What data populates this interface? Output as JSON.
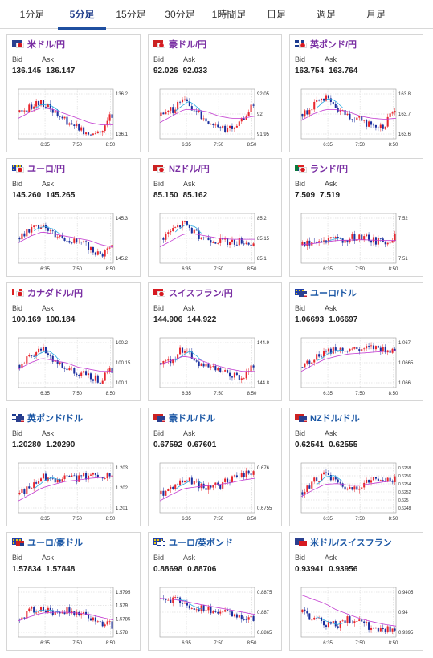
{
  "tabs": [
    {
      "label": "1分足",
      "active": false
    },
    {
      "label": "5分足",
      "active": true
    },
    {
      "label": "15分足",
      "active": false
    },
    {
      "label": "30分足",
      "active": false
    },
    {
      "label": "1時間足",
      "active": false
    },
    {
      "label": "日足",
      "active": false
    },
    {
      "label": "週足",
      "active": false
    },
    {
      "label": "月足",
      "active": false
    }
  ],
  "bid_label": "Bid",
  "ask_label": "Ask",
  "colors": {
    "up": "#e8262d",
    "down": "#1b2f9e",
    "ma1": "#2aa9e0",
    "ma2": "#c23ad0",
    "pair_purple": "#7a2fa3",
    "pair_blue": "#1b57a5"
  },
  "cards": [
    {
      "pair": "米ドル/円",
      "pair_color": "purple",
      "flag": "us-jp",
      "bid": "136.145",
      "ask": "136.147",
      "chart_data": {
        "type": "candlestick",
        "x_ticks": [
          "6:35",
          "7:50",
          "8:50"
        ],
        "y_ticks": [
          "136.2",
          "136.1"
        ],
        "y_range": [
          136.03,
          136.25
        ],
        "shape": [
          0.55,
          0.68,
          0.75,
          0.55,
          0.35,
          0.2,
          0.05,
          0.1,
          0.5
        ],
        "ma2": [
          0.4,
          0.55,
          0.65,
          0.6,
          0.5,
          0.4,
          0.3,
          0.25,
          0.25
        ]
      }
    },
    {
      "pair": "豪ドル/円",
      "pair_color": "purple",
      "flag": "au-jp",
      "bid": "92.026",
      "ask": "92.033",
      "chart_data": {
        "type": "candlestick",
        "x_ticks": [
          "6:35",
          "7:50",
          "8:50"
        ],
        "y_ticks": [
          "92.05",
          "92",
          "91.95"
        ],
        "y_range": [
          91.93,
          92.07
        ],
        "shape": [
          0.45,
          0.6,
          0.85,
          0.55,
          0.35,
          0.2,
          0.15,
          0.35,
          0.75
        ],
        "ma2": [
          0.3,
          0.45,
          0.6,
          0.6,
          0.55,
          0.45,
          0.4,
          0.4,
          0.45
        ]
      }
    },
    {
      "pair": "英ポンド/円",
      "pair_color": "purple",
      "flag": "gb-jp",
      "bid": "163.754",
      "ask": "163.764",
      "chart_data": {
        "type": "candlestick",
        "x_ticks": [
          "6:35",
          "7:50",
          "8:50"
        ],
        "y_ticks": [
          "163.8",
          "163.7",
          "163.6"
        ],
        "y_range": [
          163.55,
          163.85
        ],
        "shape": [
          0.5,
          0.7,
          0.85,
          0.6,
          0.45,
          0.35,
          0.25,
          0.2,
          0.6
        ],
        "ma2": [
          0.35,
          0.5,
          0.6,
          0.6,
          0.55,
          0.45,
          0.4,
          0.38,
          0.4
        ]
      }
    },
    {
      "pair": "ユーロ/円",
      "pair_color": "purple",
      "flag": "eu-jp",
      "bid": "145.260",
      "ask": "145.265",
      "chart_data": {
        "type": "candlestick",
        "x_ticks": [
          "6:35",
          "7:50",
          "8:50"
        ],
        "y_ticks": [
          "145.3",
          "145.2"
        ],
        "y_range": [
          145.12,
          145.36
        ],
        "shape": [
          0.5,
          0.7,
          0.85,
          0.6,
          0.5,
          0.4,
          0.3,
          0.1,
          0.35
        ],
        "ma2": [
          0.4,
          0.55,
          0.65,
          0.6,
          0.55,
          0.5,
          0.45,
          0.35,
          0.3
        ]
      }
    },
    {
      "pair": "NZドル/円",
      "pair_color": "purple",
      "flag": "nz-jp",
      "bid": "85.150",
      "ask": "85.162",
      "chart_data": {
        "type": "candlestick",
        "x_ticks": [
          "6:35",
          "7:50",
          "8:50"
        ],
        "y_ticks": [
          "85.2",
          "85.15",
          "85.1"
        ],
        "y_range": [
          85.06,
          85.22
        ],
        "shape": [
          0.5,
          0.7,
          0.85,
          0.6,
          0.5,
          0.45,
          0.4,
          0.45,
          0.35
        ],
        "ma2": [
          0.3,
          0.45,
          0.6,
          0.6,
          0.55,
          0.5,
          0.48,
          0.48,
          0.48
        ]
      }
    },
    {
      "pair": "ランド/円",
      "pair_color": "purple",
      "flag": "za-jp",
      "bid": "7.509",
      "ask": "7.519",
      "chart_data": {
        "type": "candlestick",
        "x_ticks": [
          "6:35",
          "7:50",
          "8:50"
        ],
        "y_ticks": [
          "7.52",
          "7.51"
        ],
        "y_range": [
          7.49,
          7.53
        ],
        "shape": [
          0.35,
          0.4,
          0.45,
          0.45,
          0.5,
          0.55,
          0.45,
          0.4,
          0.55
        ],
        "ma2": [
          0.35,
          0.38,
          0.42,
          0.45,
          0.46,
          0.47,
          0.46,
          0.45,
          0.45
        ]
      }
    },
    {
      "pair": "カナダドル/円",
      "pair_color": "purple",
      "flag": "ca-jp",
      "bid": "100.169",
      "ask": "100.184",
      "chart_data": {
        "type": "candlestick",
        "x_ticks": [
          "6:35",
          "7:50",
          "8:50"
        ],
        "y_ticks": [
          "100.2",
          "100.15",
          "100.1"
        ],
        "y_range": [
          100.05,
          100.25
        ],
        "shape": [
          0.45,
          0.65,
          0.85,
          0.55,
          0.35,
          0.25,
          0.2,
          0.1,
          0.35
        ],
        "ma2": [
          0.35,
          0.5,
          0.6,
          0.55,
          0.5,
          0.4,
          0.35,
          0.3,
          0.3
        ]
      }
    },
    {
      "pair": "スイスフラン/円",
      "pair_color": "purple",
      "flag": "ch-jp",
      "bid": "144.906",
      "ask": "144.922",
      "chart_data": {
        "type": "candlestick",
        "x_ticks": [
          "6:35",
          "7:50",
          "8:50"
        ],
        "y_ticks": [
          "144.9",
          "144.8"
        ],
        "y_range": [
          144.74,
          145.0
        ],
        "shape": [
          0.5,
          0.6,
          0.85,
          0.55,
          0.4,
          0.3,
          0.2,
          0.15,
          0.45
        ],
        "ma2": [
          0.45,
          0.55,
          0.65,
          0.6,
          0.5,
          0.42,
          0.35,
          0.3,
          0.3
        ]
      }
    },
    {
      "pair": "ユーロ/ドル",
      "pair_color": "blue",
      "flag": "eu-us",
      "bid": "1.06693",
      "ask": "1.06697",
      "chart_data": {
        "type": "candlestick",
        "x_ticks": [
          "6:35",
          "7:50",
          "8:50"
        ],
        "y_ticks": [
          "1.067",
          "1.0665",
          "1.066"
        ],
        "y_range": [
          1.0656,
          1.0672
        ],
        "shape": [
          0.4,
          0.6,
          0.75,
          0.8,
          0.8,
          0.78,
          0.82,
          0.8,
          0.8
        ],
        "ma2": [
          0.3,
          0.45,
          0.58,
          0.65,
          0.7,
          0.72,
          0.74,
          0.76,
          0.78
        ]
      }
    },
    {
      "pair": "英ポンド/ドル",
      "pair_color": "blue",
      "flag": "gb-us",
      "bid": "1.20280",
      "ask": "1.20290",
      "chart_data": {
        "type": "candlestick",
        "x_ticks": [
          "6:35",
          "7:50",
          "8:50"
        ],
        "y_ticks": [
          "1.203",
          "1.202",
          "1.201"
        ],
        "y_range": [
          1.2005,
          1.2035
        ],
        "shape": [
          0.35,
          0.55,
          0.75,
          0.7,
          0.75,
          0.72,
          0.78,
          0.78,
          0.78
        ],
        "ma2": [
          0.2,
          0.35,
          0.5,
          0.58,
          0.65,
          0.68,
          0.72,
          0.74,
          0.76
        ]
      }
    },
    {
      "pair": "豪ドル/ドル",
      "pair_color": "blue",
      "flag": "au-us",
      "bid": "0.67592",
      "ask": "0.67601",
      "chart_data": {
        "type": "candlestick",
        "x_ticks": [
          "6:35",
          "7:50",
          "8:50"
        ],
        "y_ticks": [
          "0.676",
          "0.6755"
        ],
        "y_range": [
          0.6748,
          0.6764
        ],
        "shape": [
          0.35,
          0.55,
          0.7,
          0.6,
          0.5,
          0.55,
          0.7,
          0.8,
          0.85
        ],
        "ma2": [
          0.2,
          0.35,
          0.48,
          0.52,
          0.55,
          0.58,
          0.62,
          0.68,
          0.72
        ]
      }
    },
    {
      "pair": "NZドル/ドル",
      "pair_color": "blue",
      "flag": "nz-us",
      "bid": "0.62541",
      "ask": "0.62555",
      "chart_data": {
        "type": "candlestick",
        "x_ticks": [
          "6:35",
          "7:50",
          "8:50"
        ],
        "y_ticks": [
          "0.6258",
          "0.6256",
          "0.6254",
          "0.6252",
          "0.625",
          "0.6248"
        ],
        "y_range": [
          0.6247,
          0.6259
        ],
        "shape": [
          0.4,
          0.65,
          0.8,
          0.6,
          0.45,
          0.55,
          0.65,
          0.7,
          0.7
        ],
        "ma2": [
          0.3,
          0.45,
          0.58,
          0.6,
          0.56,
          0.56,
          0.6,
          0.64,
          0.66
        ]
      }
    },
    {
      "pair": "ユーロ/豪ドル",
      "pair_color": "blue",
      "flag": "eu-au",
      "bid": "1.57834",
      "ask": "1.57848",
      "chart_data": {
        "type": "candlestick",
        "x_ticks": [
          "6:35",
          "7:50",
          "8:50"
        ],
        "y_ticks": [
          "1.5795",
          "1.579",
          "1.5785",
          "1.578"
        ],
        "y_range": [
          1.5776,
          1.5798
        ],
        "shape": [
          0.35,
          0.55,
          0.6,
          0.5,
          0.55,
          0.45,
          0.4,
          0.25,
          0.2
        ],
        "ma2": [
          0.3,
          0.4,
          0.48,
          0.5,
          0.5,
          0.48,
          0.45,
          0.38,
          0.32
        ]
      }
    },
    {
      "pair": "ユーロ/英ポンド",
      "pair_color": "blue",
      "flag": "eu-gb",
      "bid": "0.88698",
      "ask": "0.88706",
      "chart_data": {
        "type": "candlestick",
        "x_ticks": [
          "6:35",
          "7:50",
          "8:50"
        ],
        "y_ticks": [
          "0.8875",
          "0.887",
          "0.8865"
        ],
        "y_range": [
          0.8862,
          0.8878
        ],
        "shape": [
          0.8,
          0.8,
          0.7,
          0.6,
          0.55,
          0.5,
          0.45,
          0.4,
          0.35
        ],
        "ma2": [
          0.82,
          0.8,
          0.76,
          0.7,
          0.65,
          0.6,
          0.55,
          0.5,
          0.45
        ]
      }
    },
    {
      "pair": "米ドル/スイスフラン",
      "pair_color": "blue",
      "flag": "us-ch",
      "bid": "0.93941",
      "ask": "0.93956",
      "chart_data": {
        "type": "candlestick",
        "x_ticks": [
          "6:35",
          "7:50",
          "8:50"
        ],
        "y_ticks": [
          "0.9405",
          "0.94",
          "0.9395"
        ],
        "y_range": [
          0.9392,
          0.9407
        ],
        "shape": [
          0.5,
          0.35,
          0.25,
          0.2,
          0.35,
          0.25,
          0.15,
          0.1,
          0.1
        ],
        "ma2": [
          0.9,
          0.8,
          0.7,
          0.55,
          0.45,
          0.35,
          0.28,
          0.22,
          0.18
        ]
      }
    }
  ]
}
